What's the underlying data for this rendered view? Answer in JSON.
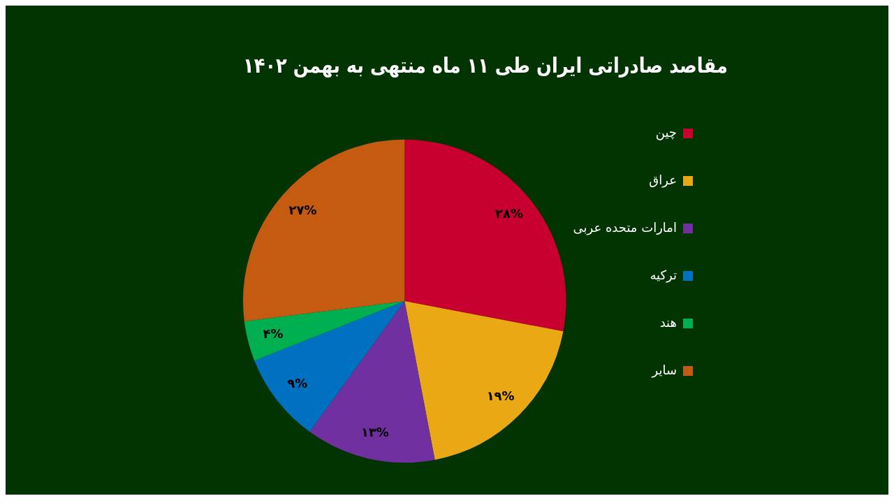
{
  "chart_data": {
    "type": "pie",
    "title": "مقاصد صادراتی ایران طی ۱۱ ماه منتهی به بهمن ۱۴۰۲",
    "categories": [
      "چین",
      "عراق",
      "امارات متحده عربی",
      "ترکیه",
      "هند",
      "سایر"
    ],
    "values": [
      28,
      19,
      13,
      9,
      4,
      27
    ],
    "value_labels": [
      "۲۸%",
      "۱۹%",
      "۱۳%",
      "۹%",
      "۴%",
      "۲۷%"
    ],
    "colors": [
      "#c8002f",
      "#eaa914",
      "#7030a0",
      "#0070c0",
      "#00b050",
      "#c55a11"
    ],
    "legend": "right"
  }
}
